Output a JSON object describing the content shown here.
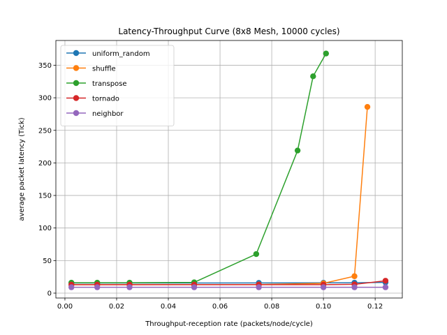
{
  "chart_data": {
    "type": "line",
    "title": "Latency-Throughput Curve (8x8 Mesh, 10000 cycles)",
    "xlabel": "Throughput-reception rate (packets/node/cycle)",
    "ylabel": "average packet latency (Tick)",
    "xlim": [
      -0.0035,
      0.1305
    ],
    "ylim": [
      -7.5,
      388
    ],
    "xticks": [
      0.0,
      0.02,
      0.04,
      0.06,
      0.08,
      0.1,
      0.12
    ],
    "xtick_labels": [
      "0.00",
      "0.02",
      "0.04",
      "0.06",
      "0.08",
      "0.10",
      "0.12"
    ],
    "yticks": [
      0,
      50,
      100,
      150,
      200,
      250,
      300,
      350
    ],
    "ytick_labels": [
      "0",
      "50",
      "100",
      "150",
      "200",
      "250",
      "300",
      "350"
    ],
    "grid": true,
    "legend_position": "top-left",
    "series": [
      {
        "name": "uniform_random",
        "color": "#1f77b4",
        "x": [
          0.0025,
          0.0125,
          0.025,
          0.05,
          0.075,
          0.1,
          0.112,
          0.124
        ],
        "y": [
          15.5,
          15.5,
          15.5,
          15.6,
          15.7,
          15.8,
          16.0,
          16.5
        ]
      },
      {
        "name": "shuffle",
        "color": "#ff7f0e",
        "x": [
          0.0025,
          0.0125,
          0.025,
          0.05,
          0.075,
          0.1,
          0.112,
          0.117
        ],
        "y": [
          13.0,
          13.0,
          13.0,
          13.1,
          13.2,
          15.0,
          26.0,
          286.0
        ]
      },
      {
        "name": "transpose",
        "color": "#2ca02c",
        "x": [
          0.0025,
          0.0125,
          0.025,
          0.05,
          0.074,
          0.09,
          0.096,
          0.101
        ],
        "y": [
          16.0,
          16.0,
          16.0,
          16.5,
          60.0,
          219.0,
          333.0,
          368.0
        ]
      },
      {
        "name": "tornado",
        "color": "#d62728",
        "x": [
          0.0025,
          0.0125,
          0.025,
          0.05,
          0.075,
          0.1,
          0.112,
          0.124
        ],
        "y": [
          13.0,
          13.0,
          13.0,
          13.0,
          13.0,
          13.0,
          13.5,
          19.0
        ]
      },
      {
        "name": "neighbor",
        "color": "#9467bd",
        "x": [
          0.0025,
          0.0125,
          0.025,
          0.05,
          0.075,
          0.1,
          0.112,
          0.124
        ],
        "y": [
          9.0,
          9.0,
          9.0,
          9.0,
          9.0,
          9.0,
          9.0,
          9.0
        ]
      }
    ]
  }
}
